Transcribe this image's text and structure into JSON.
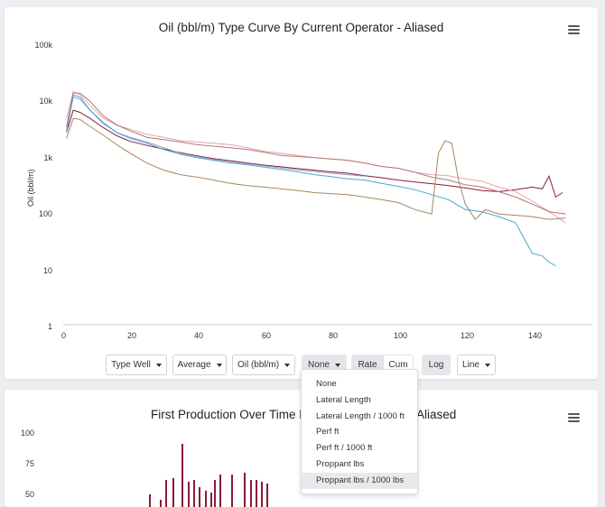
{
  "chart1": {
    "title": "Oil (bbl/m) Type Curve By Current Operator - Aliased",
    "ylabel": "Oil (bbl/m)",
    "yticks": [
      "100k",
      "10k",
      "1k",
      "100",
      "10",
      "1"
    ],
    "xticks": [
      "0",
      "20",
      "40",
      "60",
      "80",
      "100",
      "120",
      "140"
    ]
  },
  "controls": {
    "type_well": "Type Well",
    "aggregate": "Average",
    "stream": "Oil (bbl/m)",
    "normalize": "None",
    "rate": "Rate",
    "cum": "Cum",
    "log": "Log",
    "chart_type": "Line"
  },
  "normalize_menu": {
    "items": [
      "None",
      "Lateral Length",
      "Lateral Length / 1000 ft",
      "Perf ft",
      "Perf ft / 1000 ft",
      "Proppant lbs",
      "Proppant lbs / 1000 lbs"
    ]
  },
  "chart2": {
    "title_left": "First Production Over Time B",
    "title_right": "Aliased",
    "yticks": [
      "100",
      "75",
      "50"
    ]
  },
  "chart_data": [
    {
      "type": "line",
      "title": "Oil (bbl/m) Type Curve By Current Operator - Aliased",
      "xlabel": "",
      "ylabel": "Oil (bbl/m)",
      "yscale": "log",
      "ylim": [
        1,
        100000
      ],
      "xlim": [
        0,
        150
      ],
      "grid": false,
      "series": [
        {
          "color": "#8b1a3c",
          "x": [
            1,
            3,
            5,
            8,
            12,
            16,
            20,
            25,
            30,
            35,
            40,
            45,
            50,
            55,
            60,
            65,
            70,
            75,
            80,
            85,
            90,
            95,
            100,
            105,
            110,
            115,
            120,
            125,
            130,
            135,
            140,
            143,
            145,
            147,
            149
          ],
          "y": [
            2800,
            7000,
            6400,
            5000,
            3400,
            2450,
            1950,
            1650,
            1420,
            1230,
            1080,
            960,
            880,
            800,
            740,
            690,
            640,
            600,
            560,
            530,
            480,
            440,
            400,
            370,
            345,
            320,
            290,
            260,
            250,
            270,
            300,
            280,
            470,
            200,
            240
          ]
        },
        {
          "color": "#9a9ac0",
          "x": [
            1,
            3,
            5,
            8,
            12,
            16,
            20,
            25,
            30,
            35,
            40,
            45,
            50,
            55,
            60,
            65,
            70,
            75,
            80,
            85,
            90
          ],
          "y": [
            3000,
            12000,
            11000,
            7000,
            4000,
            2800,
            2300,
            1900,
            1500,
            1200,
            1050,
            930,
            850,
            780,
            720,
            660,
            610,
            570,
            530,
            500,
            470
          ]
        },
        {
          "color": "#e8a4b0",
          "x": [
            1,
            3,
            5,
            8,
            12,
            16,
            20,
            25,
            30,
            35,
            40,
            45,
            50,
            55,
            60,
            65,
            70,
            75,
            80,
            85,
            90,
            95,
            100,
            105,
            110,
            115,
            120,
            125,
            130,
            135,
            140,
            145,
            150
          ],
          "y": [
            5000,
            15000,
            13000,
            8500,
            5000,
            3800,
            3200,
            2600,
            2300,
            2000,
            1900,
            1800,
            1700,
            1500,
            1300,
            1200,
            1100,
            1000,
            950,
            900,
            800,
            700,
            650,
            550,
            500,
            480,
            420,
            380,
            300,
            250,
            170,
            110,
            70
          ]
        },
        {
          "color": "#b7766b",
          "x": [
            1,
            3,
            5,
            8,
            12,
            16,
            20,
            25,
            30,
            35,
            40,
            45,
            50,
            55,
            60,
            65,
            70,
            75,
            80,
            85,
            90,
            95,
            100,
            105,
            110,
            115,
            120,
            125,
            130,
            135,
            140,
            145,
            150
          ],
          "y": [
            3500,
            14000,
            14000,
            10000,
            5500,
            3800,
            3000,
            2300,
            2100,
            1900,
            1700,
            1600,
            1500,
            1400,
            1250,
            1100,
            1050,
            1000,
            950,
            900,
            800,
            700,
            650,
            550,
            450,
            400,
            330,
            300,
            250,
            200,
            150,
            110,
            100
          ]
        },
        {
          "color": "#4aa7d0",
          "x": [
            1,
            3,
            5,
            8,
            12,
            16,
            20,
            25,
            30,
            35,
            40,
            45,
            50,
            55,
            60,
            65,
            70,
            75,
            80,
            85,
            90,
            95,
            100,
            105,
            110,
            115,
            120,
            125,
            130,
            135,
            140,
            143,
            145,
            147
          ],
          "y": [
            2800,
            13000,
            12000,
            7000,
            4200,
            2800,
            2200,
            1800,
            1400,
            1150,
            1000,
            900,
            800,
            750,
            680,
            620,
            560,
            500,
            460,
            420,
            400,
            350,
            310,
            270,
            220,
            180,
            120,
            110,
            90,
            70,
            20,
            18,
            14,
            12
          ]
        },
        {
          "color": "#a8855f",
          "x": [
            1,
            3,
            5,
            8,
            12,
            16,
            20,
            25,
            30,
            35,
            40,
            45,
            50,
            55,
            60,
            65,
            70,
            75,
            80,
            85,
            90,
            95,
            100,
            105,
            110,
            112,
            114,
            116,
            118,
            120,
            123,
            126,
            130,
            135,
            140,
            145,
            150
          ],
          "y": [
            2200,
            5000,
            4800,
            3600,
            2500,
            1700,
            1200,
            800,
            600,
            500,
            450,
            400,
            350,
            320,
            300,
            280,
            260,
            240,
            230,
            220,
            200,
            180,
            160,
            120,
            100,
            1200,
            2000,
            1800,
            400,
            150,
            80,
            120,
            100,
            95,
            90,
            80,
            85
          ]
        }
      ]
    }
  ]
}
